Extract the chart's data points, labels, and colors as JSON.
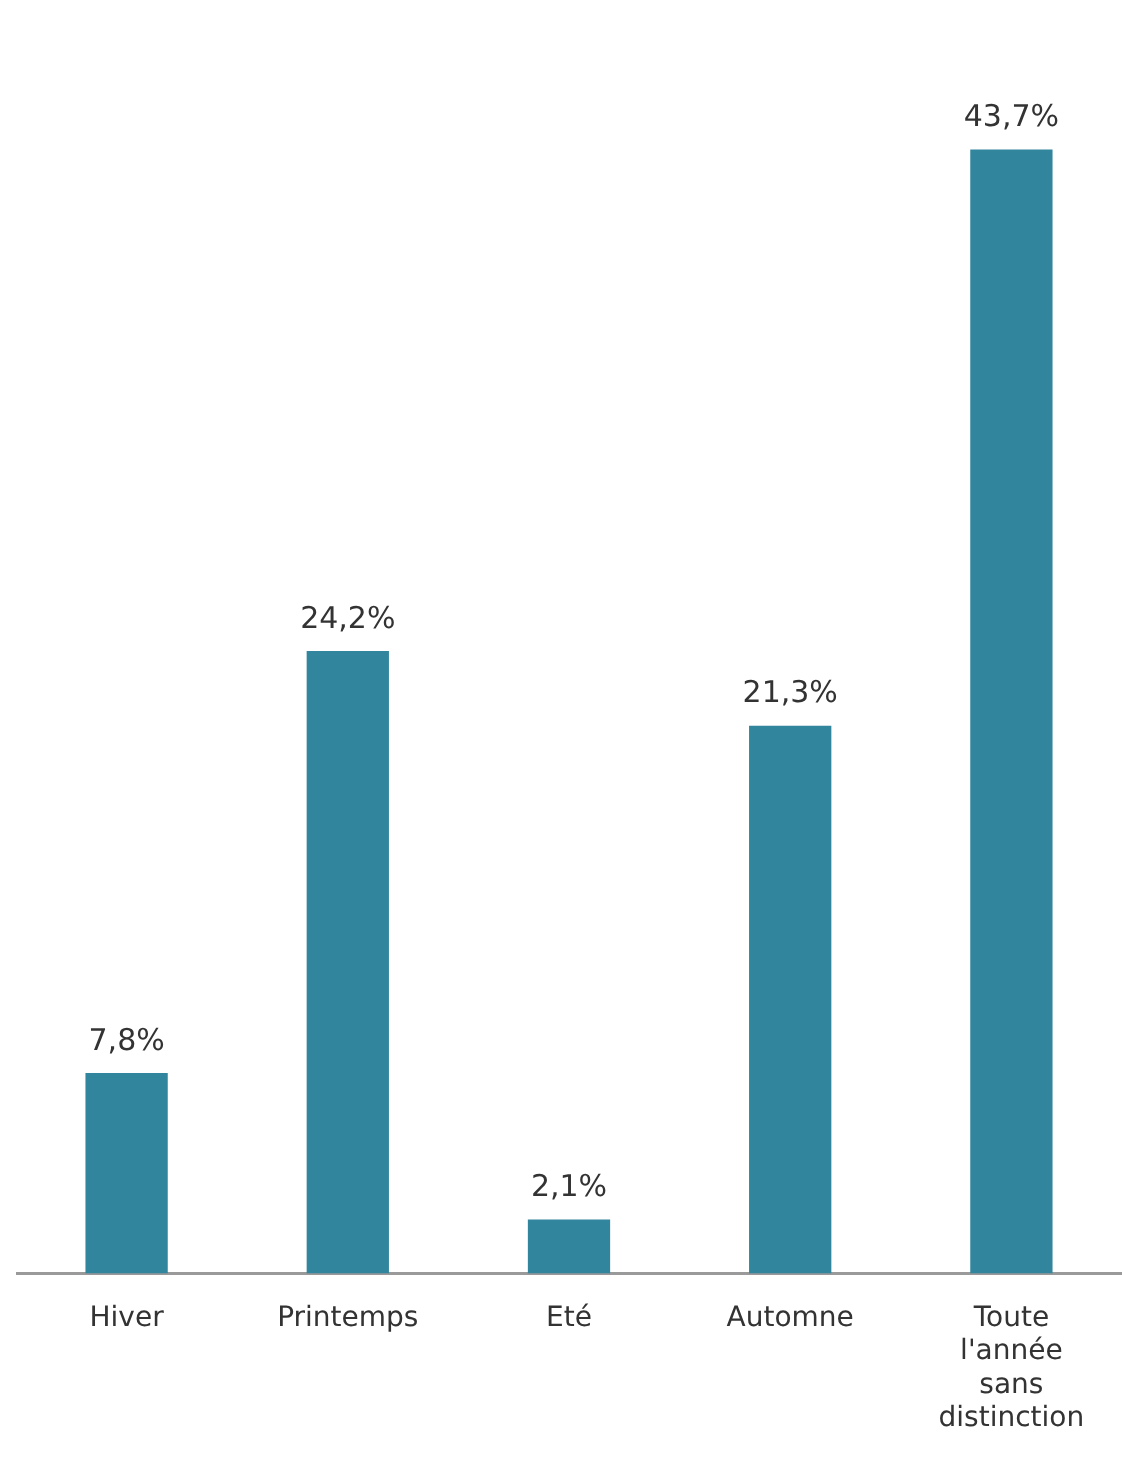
{
  "chart_data": {
    "type": "bar",
    "categories": [
      "Hiver",
      "Printemps",
      "Eté",
      "Automne",
      "Toute l'année sans distinction"
    ],
    "values": [
      7.8,
      24.2,
      2.1,
      21.3,
      43.7
    ],
    "value_labels": [
      "7,8%",
      "24,2%",
      "2,1%",
      "21,3%",
      "43,7%"
    ],
    "color": "#31859c",
    "grid": false,
    "legend": false
  }
}
